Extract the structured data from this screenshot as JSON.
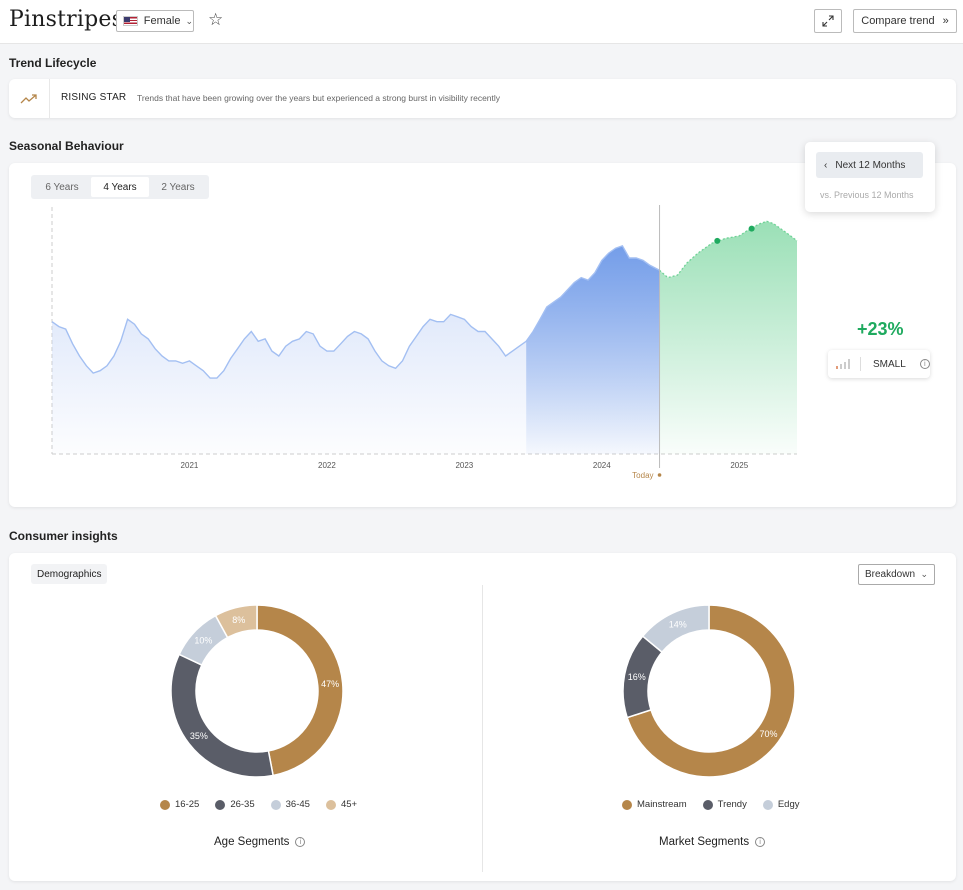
{
  "header": {
    "brand": "Pinstripes",
    "gender_value": "Female",
    "compare_label": "Compare trend"
  },
  "lifecycle": {
    "title": "Trend Lifecycle",
    "stage": "RISING STAR",
    "description": "Trends that have been growing over the years but experienced a strong burst in visibility recently"
  },
  "seasonal": {
    "title": "Seasonal Behaviour",
    "ranges": [
      "6 Years",
      "4 Years",
      "2 Years"
    ],
    "active_range": "4 Years",
    "period_button": "Next 12 Months",
    "period_sub": "vs. Previous 12 Months",
    "growth": "+23%",
    "size_label": "SMALL",
    "today_label": "Today"
  },
  "chart_data": [
    {
      "type": "area",
      "x_ticks": [
        "2021",
        "2022",
        "2023",
        "2024",
        "2025"
      ],
      "x_range": [
        2020.0,
        2025.42
      ],
      "y_range": [
        0,
        100
      ],
      "today": 2024.42,
      "series": [
        {
          "name": "",
          "role": "history",
          "color": "#a3bff2",
          "highlight_color": "#6f9ae8",
          "highlight_from": 2023.42,
          "x": [
            2020.0,
            2020.05,
            2020.1,
            2020.15,
            2020.2,
            2020.25,
            2020.3,
            2020.35,
            2020.4,
            2020.45,
            2020.5,
            2020.55,
            2020.6,
            2020.65,
            2020.7,
            2020.75,
            2020.8,
            2020.85,
            2020.9,
            2020.95,
            2021.0,
            2021.05,
            2021.1,
            2021.15,
            2021.2,
            2021.25,
            2021.3,
            2021.35,
            2021.4,
            2021.45,
            2021.5,
            2021.55,
            2021.6,
            2021.65,
            2021.7,
            2021.75,
            2021.8,
            2021.85,
            2021.9,
            2021.95,
            2022.0,
            2022.05,
            2022.1,
            2022.15,
            2022.2,
            2022.25,
            2022.3,
            2022.35,
            2022.4,
            2022.45,
            2022.5,
            2022.55,
            2022.6,
            2022.65,
            2022.7,
            2022.75,
            2022.8,
            2022.85,
            2022.9,
            2022.95,
            2023.0,
            2023.05,
            2023.1,
            2023.15,
            2023.2,
            2023.25,
            2023.3,
            2023.35,
            2023.4,
            2023.45,
            2023.5,
            2023.55,
            2023.6,
            2023.65,
            2023.7,
            2023.75,
            2023.8,
            2023.85,
            2023.9,
            2023.95,
            2024.0,
            2024.05,
            2024.1,
            2024.15,
            2024.2,
            2024.25,
            2024.3,
            2024.35,
            2024.42
          ],
          "y": [
            54,
            52,
            51,
            45,
            40,
            36,
            33,
            34,
            36,
            40,
            46,
            55,
            53,
            49,
            47,
            43,
            40,
            38,
            38,
            37,
            38,
            36,
            34,
            31,
            31,
            34,
            39,
            43,
            47,
            50,
            46,
            47,
            42,
            40,
            44,
            46,
            47,
            50,
            49,
            44,
            42,
            42,
            45,
            48,
            50,
            49,
            47,
            42,
            38,
            36,
            35,
            38,
            44,
            48,
            52,
            55,
            54,
            54,
            57,
            56,
            55,
            52,
            50,
            50,
            47,
            44,
            40,
            42,
            44,
            46,
            50,
            55,
            60,
            62,
            64,
            67,
            70,
            72,
            71,
            74,
            79,
            82,
            84,
            85,
            80,
            80,
            79,
            77,
            75
          ]
        },
        {
          "name": "",
          "role": "forecast",
          "color": "#a8e6bf",
          "x": [
            2024.42,
            2024.48,
            2024.55,
            2024.62,
            2024.7,
            2024.8,
            2024.9,
            2025.0,
            2025.08,
            2025.15,
            2025.2,
            2025.25,
            2025.3,
            2025.35,
            2025.42
          ],
          "y": [
            75,
            72,
            73,
            78,
            82,
            86,
            88,
            89,
            92,
            94,
            95,
            94,
            92,
            90,
            87
          ],
          "markers": [
            {
              "x": 2024.84,
              "y": 87
            },
            {
              "x": 2025.09,
              "y": 92
            }
          ]
        }
      ]
    },
    {
      "type": "pie",
      "variant": "donut",
      "title": "Age Segments",
      "labels": [
        "16-25",
        "26-35",
        "36-45",
        "45+"
      ],
      "values": [
        47,
        35,
        10,
        8
      ],
      "value_labels": [
        "47%",
        "35%",
        "10%",
        "8%"
      ],
      "colors": [
        "#b5864a",
        "#5a5d68",
        "#c5ceda",
        "#dcc09c"
      ]
    },
    {
      "type": "pie",
      "variant": "donut",
      "title": "Market Segments",
      "labels": [
        "Mainstream",
        "Trendy",
        "Edgy"
      ],
      "values": [
        70,
        16,
        14
      ],
      "value_labels": [
        "70%",
        "16%",
        "14%"
      ],
      "colors": [
        "#b5864a",
        "#5a5d68",
        "#c5ceda"
      ]
    }
  ],
  "consumer": {
    "title": "Consumer insights",
    "tab_label": "Demographics",
    "breakdown_label": "Breakdown"
  }
}
